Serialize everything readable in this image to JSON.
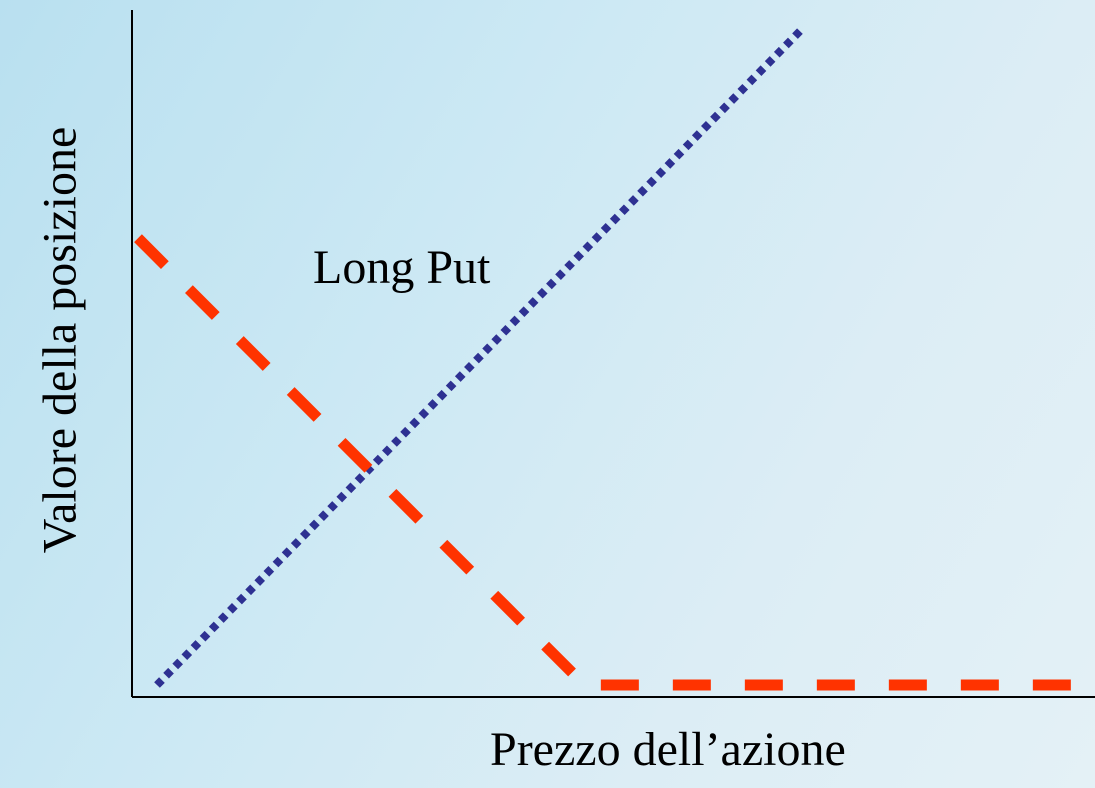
{
  "chart_data": {
    "type": "line",
    "title": "",
    "xlabel": "Prezzo dell’azione",
    "ylabel": "Valore della posizione",
    "annotations": [
      "Long Put"
    ],
    "grid": false,
    "legend": "none",
    "xlim": [
      0,
      10
    ],
    "ylim": [
      0,
      10
    ],
    "series": [
      {
        "style": "dotted",
        "color": "#2e3192",
        "x": [
          0.2,
          7.0
        ],
        "y": [
          0,
          10
        ]
      },
      {
        "style": "dashed",
        "color": "#ff3300",
        "x": [
          0,
          4.7,
          9.9
        ],
        "y": [
          6.8,
          0,
          0
        ]
      }
    ]
  }
}
